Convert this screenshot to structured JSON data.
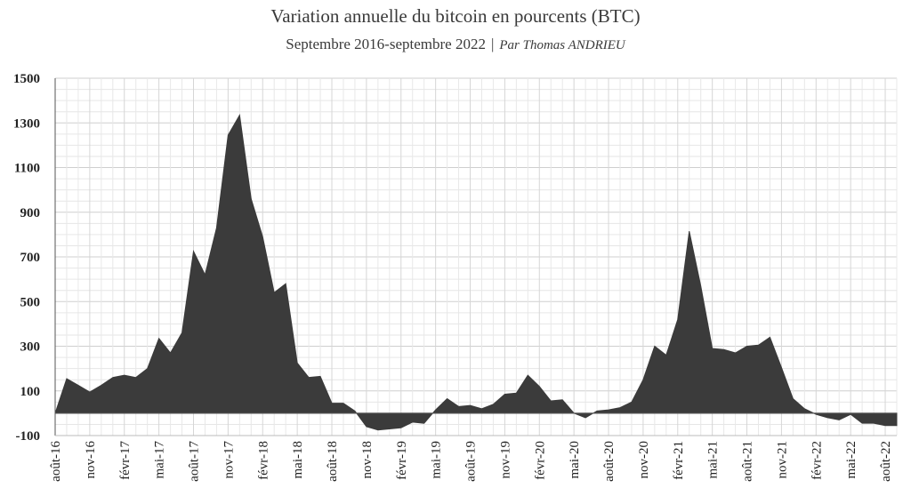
{
  "chart_data": {
    "type": "area",
    "title": "Variation annuelle du bitcoin en pourcents (BTC)",
    "subtitle": "Septembre 2016-septembre 2022",
    "subtitle_separator": "|",
    "author": "Par Thomas ANDRIEU",
    "xlabel": "",
    "ylabel": "",
    "ylim": [
      -100,
      1500
    ],
    "yticks": [
      -100,
      100,
      300,
      500,
      700,
      900,
      1100,
      1300,
      1500
    ],
    "grid": true,
    "legend": "none",
    "fill_color": "#3b3b3b",
    "grid_color": "#d9d9d9",
    "x_tick_labels": [
      "août-16",
      "nov-16",
      "févr-17",
      "mai-17",
      "août-17",
      "nov-17",
      "févr-18",
      "mai-18",
      "août-18",
      "nov-18",
      "févr-19",
      "mai-19",
      "août-19",
      "nov-19",
      "févr-20",
      "mai-20",
      "août-20",
      "nov-20",
      "févr-21",
      "mai-21",
      "août-21",
      "nov-21",
      "févr-22",
      "mai-22",
      "août-22"
    ],
    "x": [
      "2016-08",
      "2016-09",
      "2016-10",
      "2016-11",
      "2016-12",
      "2017-01",
      "2017-02",
      "2017-03",
      "2017-04",
      "2017-05",
      "2017-06",
      "2017-07",
      "2017-08",
      "2017-09",
      "2017-10",
      "2017-11",
      "2017-12",
      "2018-01",
      "2018-02",
      "2018-03",
      "2018-04",
      "2018-05",
      "2018-06",
      "2018-07",
      "2018-08",
      "2018-09",
      "2018-10",
      "2018-11",
      "2018-12",
      "2019-01",
      "2019-02",
      "2019-03",
      "2019-04",
      "2019-05",
      "2019-06",
      "2019-07",
      "2019-08",
      "2019-09",
      "2019-10",
      "2019-11",
      "2019-12",
      "2020-01",
      "2020-02",
      "2020-03",
      "2020-04",
      "2020-05",
      "2020-06",
      "2020-07",
      "2020-08",
      "2020-09",
      "2020-10",
      "2020-11",
      "2020-12",
      "2021-01",
      "2021-02",
      "2021-03",
      "2021-04",
      "2021-05",
      "2021-06",
      "2021-07",
      "2021-08",
      "2021-09",
      "2021-10",
      "2021-11",
      "2021-12",
      "2022-01",
      "2022-02",
      "2022-03",
      "2022-04",
      "2022-05",
      "2022-06",
      "2022-07",
      "2022-08",
      "2022-09"
    ],
    "values": [
      0,
      155,
      125,
      95,
      125,
      160,
      170,
      160,
      200,
      335,
      270,
      360,
      725,
      620,
      830,
      1245,
      1335,
      960,
      790,
      540,
      580,
      225,
      160,
      165,
      45,
      45,
      10,
      -60,
      -75,
      -70,
      -65,
      -40,
      -45,
      15,
      65,
      30,
      35,
      20,
      40,
      85,
      90,
      170,
      120,
      55,
      60,
      0,
      -20,
      10,
      15,
      25,
      50,
      150,
      300,
      260,
      420,
      815,
      570,
      290,
      285,
      270,
      300,
      305,
      340,
      205,
      65,
      20,
      -5,
      -20,
      -30,
      -5,
      -45,
      -45,
      -55,
      -55
    ]
  }
}
